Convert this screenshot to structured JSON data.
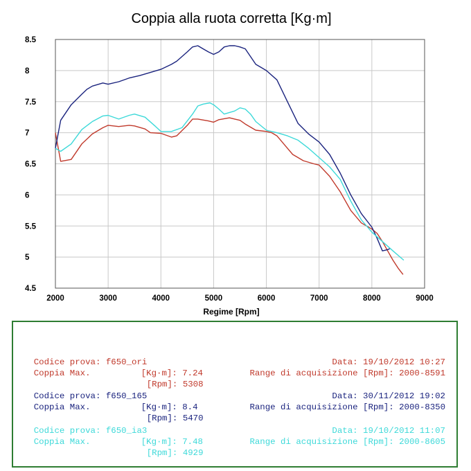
{
  "chart_data": {
    "type": "line",
    "title": "Coppia alla ruota corretta [Kg·m]",
    "xlabel": "Regime [Rpm]",
    "ylabel": "",
    "xlim": [
      2000,
      9000
    ],
    "ylim": [
      4.5,
      8.5
    ],
    "xticks": [
      2000,
      3000,
      4000,
      5000,
      6000,
      7000,
      8000,
      9000
    ],
    "yticks": [
      4.5,
      5,
      5.5,
      6,
      6.5,
      7,
      7.5,
      8,
      8.5
    ],
    "ytick_labels": [
      "4.5",
      "5",
      "5.5",
      "6",
      "6.5",
      "7",
      "7.5",
      "8",
      "8.5"
    ],
    "grid": true,
    "series": [
      {
        "name": "f650_ori",
        "color": "#c0392b",
        "x": [
          2000,
          2100,
          2300,
          2500,
          2700,
          2900,
          3000,
          3200,
          3400,
          3500,
          3700,
          3800,
          4000,
          4200,
          4300,
          4500,
          4600,
          4700,
          4900,
          5000,
          5100,
          5300,
          5400,
          5500,
          5600,
          5800,
          6000,
          6100,
          6200,
          6400,
          6500,
          6600,
          6700,
          6900,
          7000,
          7200,
          7400,
          7600,
          7800,
          8000,
          8100,
          8200,
          8300,
          8400,
          8500,
          8591
        ],
        "y": [
          7.0,
          6.54,
          6.57,
          6.82,
          6.98,
          7.08,
          7.12,
          7.1,
          7.12,
          7.11,
          7.06,
          7.0,
          6.99,
          6.93,
          6.95,
          7.12,
          7.22,
          7.22,
          7.19,
          7.17,
          7.21,
          7.24,
          7.22,
          7.2,
          7.14,
          7.04,
          7.02,
          7.0,
          6.95,
          6.75,
          6.65,
          6.6,
          6.55,
          6.5,
          6.48,
          6.3,
          6.05,
          5.75,
          5.55,
          5.45,
          5.38,
          5.25,
          5.1,
          4.95,
          4.82,
          4.72
        ]
      },
      {
        "name": "f650_165",
        "color": "#1a237e",
        "x": [
          2000,
          2100,
          2300,
          2500,
          2600,
          2700,
          2900,
          3000,
          3200,
          3400,
          3600,
          3800,
          4000,
          4200,
          4300,
          4500,
          4600,
          4700,
          4800,
          4900,
          5000,
          5100,
          5200,
          5300,
          5400,
          5500,
          5600,
          5800,
          5900,
          6000,
          6200,
          6400,
          6600,
          6800,
          7000,
          7200,
          7400,
          7600,
          7800,
          8000,
          8100,
          8200,
          8300,
          8350
        ],
        "y": [
          6.75,
          7.2,
          7.45,
          7.62,
          7.7,
          7.75,
          7.8,
          7.78,
          7.82,
          7.88,
          7.92,
          7.97,
          8.02,
          8.1,
          8.15,
          8.3,
          8.38,
          8.4,
          8.35,
          8.3,
          8.26,
          8.3,
          8.38,
          8.4,
          8.4,
          8.38,
          8.35,
          8.1,
          8.05,
          8.0,
          7.85,
          7.5,
          7.15,
          6.98,
          6.85,
          6.65,
          6.35,
          6.0,
          5.7,
          5.48,
          5.3,
          5.1,
          5.12,
          5.14
        ]
      },
      {
        "name": "f650_ia3",
        "color": "#3dd9d9",
        "x": [
          2000,
          2100,
          2300,
          2500,
          2700,
          2900,
          3000,
          3200,
          3400,
          3500,
          3700,
          3900,
          4000,
          4200,
          4400,
          4600,
          4700,
          4800,
          4929,
          5000,
          5100,
          5200,
          5400,
          5500,
          5600,
          5700,
          5800,
          6000,
          6200,
          6400,
          6600,
          6800,
          7000,
          7200,
          7400,
          7600,
          7800,
          8000,
          8200,
          8400,
          8605
        ],
        "y": [
          6.75,
          6.7,
          6.82,
          7.05,
          7.18,
          7.27,
          7.28,
          7.22,
          7.28,
          7.3,
          7.25,
          7.1,
          7.02,
          7.02,
          7.08,
          7.3,
          7.43,
          7.46,
          7.48,
          7.45,
          7.38,
          7.3,
          7.35,
          7.4,
          7.38,
          7.3,
          7.18,
          7.04,
          7.0,
          6.95,
          6.88,
          6.75,
          6.6,
          6.45,
          6.25,
          5.9,
          5.6,
          5.4,
          5.25,
          5.1,
          4.95
        ]
      }
    ]
  },
  "info": [
    {
      "color": "#c0392b",
      "codice_label": "Codice prova:",
      "codice_value": "f650_ori",
      "data_label": "Data:",
      "data_value": "19/10/2012 10:27",
      "coppia_label": "Coppia Max.",
      "kgm_label": "[Kg·m]:",
      "kgm_value": "7.24",
      "rpm_label": "[Rpm]:",
      "rpm_value": "5308",
      "range_label": "Range di acquisizione [Rpm]:",
      "range_value": "2000-8591"
    },
    {
      "color": "#1a237e",
      "codice_label": "Codice prova:",
      "codice_value": "f650_165",
      "data_label": "Data:",
      "data_value": "30/11/2012 19:02",
      "coppia_label": "Coppia Max.",
      "kgm_label": "[Kg·m]:",
      "kgm_value": "8.4",
      "rpm_label": "[Rpm]:",
      "rpm_value": "5470",
      "range_label": "Range di acquisizione [Rpm]:",
      "range_value": "2000-8350"
    },
    {
      "color": "#3dd9d9",
      "codice_label": "Codice prova:",
      "codice_value": "f650_ia3",
      "data_label": "Data:",
      "data_value": "19/10/2012 11:07",
      "coppia_label": "Coppia Max.",
      "kgm_label": "[Kg·m]:",
      "kgm_value": "7.48",
      "rpm_label": "[Rpm]:",
      "rpm_value": "4929",
      "range_label": "Range di acquisizione [Rpm]:",
      "range_value": "2000-8605"
    }
  ]
}
